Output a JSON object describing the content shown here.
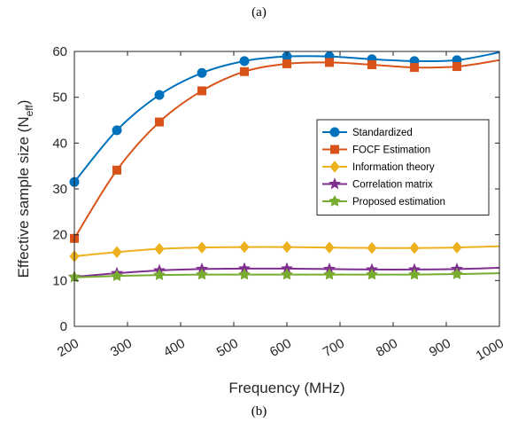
{
  "captions": {
    "top": "(a)",
    "bottom": "(b)"
  },
  "chart_data": {
    "type": "line",
    "title": "",
    "xlabel": "Frequency (MHz)",
    "ylabel": "Effective sample size (N",
    "ylabel_subscript": "eff",
    "ylabel_close": ")",
    "xlim": [
      200,
      1000
    ],
    "ylim": [
      0,
      60
    ],
    "xticks": [
      200,
      300,
      400,
      500,
      600,
      700,
      800,
      900,
      1000
    ],
    "yticks": [
      0,
      10,
      20,
      30,
      40,
      50,
      60
    ],
    "grid": false,
    "legend_position": "right-middle",
    "series": [
      {
        "name": "Standardized",
        "color": "#0072BD",
        "marker": "circle",
        "x": [
          200,
          280,
          360,
          440,
          520,
          600,
          680,
          760,
          840,
          920,
          1000
        ],
        "y": [
          31.5,
          42.8,
          50.5,
          55.3,
          57.9,
          58.9,
          58.9,
          58.3,
          57.9,
          58.1,
          59.8
        ],
        "markers_x": [
          200,
          280,
          360,
          440,
          520,
          600,
          680,
          760,
          840,
          920
        ]
      },
      {
        "name": "FOCF Estimation",
        "color": "#D95319",
        "marker": "square",
        "x": [
          200,
          280,
          360,
          440,
          520,
          600,
          680,
          760,
          840,
          920,
          1000
        ],
        "y": [
          19.2,
          34.1,
          44.6,
          51.4,
          55.6,
          57.3,
          57.6,
          57.1,
          56.5,
          56.7,
          58.1
        ],
        "markers_x": [
          200,
          280,
          360,
          440,
          520,
          600,
          680,
          760,
          840,
          920
        ]
      },
      {
        "name": "Information theory",
        "color": "#EDB120",
        "marker": "diamond",
        "x": [
          200,
          280,
          360,
          440,
          520,
          600,
          680,
          760,
          840,
          920,
          1000
        ],
        "y": [
          15.3,
          16.2,
          16.9,
          17.2,
          17.3,
          17.3,
          17.2,
          17.1,
          17.1,
          17.2,
          17.5
        ],
        "markers_x": [
          200,
          280,
          360,
          440,
          520,
          600,
          680,
          760,
          840,
          920
        ]
      },
      {
        "name": "Correlation matrix",
        "color": "#7E2F8E",
        "marker": "star",
        "x": [
          200,
          280,
          360,
          440,
          520,
          600,
          680,
          760,
          840,
          920,
          1000
        ],
        "y": [
          10.8,
          11.6,
          12.2,
          12.5,
          12.6,
          12.6,
          12.5,
          12.4,
          12.4,
          12.5,
          12.8
        ],
        "markers_x": [
          200,
          280,
          360,
          440,
          520,
          600,
          680,
          760,
          840,
          920
        ]
      },
      {
        "name": "Proposed estimation",
        "color": "#77AC30",
        "marker": "pentagram",
        "x": [
          200,
          280,
          360,
          440,
          520,
          600,
          680,
          760,
          840,
          920,
          1000
        ],
        "y": [
          10.7,
          11.0,
          11.2,
          11.3,
          11.3,
          11.3,
          11.3,
          11.3,
          11.3,
          11.4,
          11.6
        ],
        "markers_x": [
          200,
          280,
          360,
          440,
          520,
          600,
          680,
          760,
          840,
          920
        ]
      }
    ]
  }
}
